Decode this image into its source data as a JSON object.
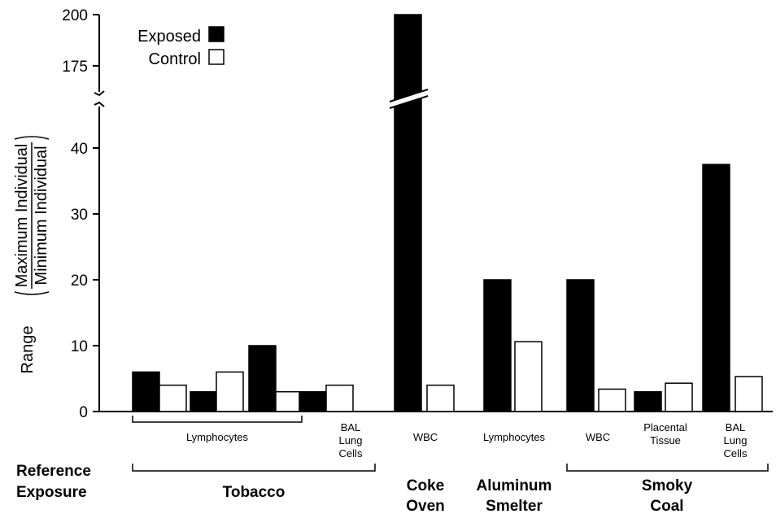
{
  "chart_data": {
    "type": "bar",
    "title": "",
    "ylabel_prefix": "Range",
    "ylabel_numerator": "Maximum Individual",
    "ylabel_denominator": "Minimum Individual",
    "y_axis_lower": {
      "ylim": [
        0,
        45
      ],
      "ticks": [
        0,
        10,
        20,
        30,
        40
      ],
      "tick_labels": [
        "0",
        "10",
        "20",
        "30",
        "40"
      ]
    },
    "y_axis_upper": {
      "ylim": [
        160,
        200
      ],
      "ticks": [
        175,
        200
      ],
      "tick_labels": [
        "175",
        "200"
      ]
    },
    "axis_break": true,
    "legend": {
      "placement": "top-left",
      "entries": [
        {
          "label": "Exposed",
          "color": "#000000"
        },
        {
          "label": "Control",
          "color": "#ffffff"
        }
      ]
    },
    "bars": [
      {
        "exposure": "Tobacco",
        "tissue": "Lymphocytes",
        "series": "Exposed",
        "value": 6
      },
      {
        "exposure": "Tobacco",
        "tissue": "Lymphocytes",
        "series": "Control",
        "value": 4
      },
      {
        "exposure": "Tobacco",
        "tissue": "Lymphocytes",
        "series": "Exposed",
        "value": 3
      },
      {
        "exposure": "Tobacco",
        "tissue": "Lymphocytes",
        "series": "Control",
        "value": 6
      },
      {
        "exposure": "Tobacco",
        "tissue": "Lymphocytes",
        "series": "Exposed",
        "value": 10
      },
      {
        "exposure": "Tobacco",
        "tissue": "Lymphocytes",
        "series": "Control",
        "value": 3
      },
      {
        "exposure": "Tobacco",
        "tissue": "BAL Lung Cells",
        "series": "Exposed",
        "value": 3
      },
      {
        "exposure": "Tobacco",
        "tissue": "BAL Lung Cells",
        "series": "Control",
        "value": 4
      },
      {
        "exposure": "Coke Oven",
        "tissue": "WBC",
        "series": "Exposed",
        "value": 200
      },
      {
        "exposure": "Coke Oven",
        "tissue": "WBC",
        "series": "Control",
        "value": 4
      },
      {
        "exposure": "Aluminum Smelter",
        "tissue": "Lymphocytes",
        "series": "Exposed",
        "value": 20
      },
      {
        "exposure": "Aluminum Smelter",
        "tissue": "Lymphocytes",
        "series": "Control",
        "value": 10.6
      },
      {
        "exposure": "Smoky Coal",
        "tissue": "WBC",
        "series": "Exposed",
        "value": 20
      },
      {
        "exposure": "Smoky Coal",
        "tissue": "WBC",
        "series": "Control",
        "value": 3.4
      },
      {
        "exposure": "Smoky Coal",
        "tissue": "Placental Tissue",
        "series": "Exposed",
        "value": 3
      },
      {
        "exposure": "Smoky Coal",
        "tissue": "Placental Tissue",
        "series": "Control",
        "value": 4.3
      },
      {
        "exposure": "Smoky Coal",
        "tissue": "BAL Lung Cells",
        "series": "Exposed",
        "value": 37.5
      },
      {
        "exposure": "Smoky Coal",
        "tissue": "BAL Lung Cells",
        "series": "Control",
        "value": 5.3
      }
    ],
    "tissue_labels": [
      {
        "lines": [
          "Lymphocytes"
        ]
      },
      {
        "lines": [
          "BAL",
          "Lung",
          "Cells"
        ]
      },
      {
        "lines": [
          "WBC"
        ]
      },
      {
        "lines": [
          "Lymphocytes"
        ]
      },
      {
        "lines": [
          "WBC"
        ]
      },
      {
        "lines": [
          "Placental",
          "Tissue"
        ]
      },
      {
        "lines": [
          "BAL",
          "Lung",
          "Cells"
        ]
      }
    ],
    "reference_exposure_label": [
      "Reference",
      "Exposure"
    ],
    "exposure_labels": [
      {
        "lines": [
          "Tobacco"
        ]
      },
      {
        "lines": [
          "Coke",
          "Oven"
        ]
      },
      {
        "lines": [
          "Aluminum",
          "Smelter"
        ]
      },
      {
        "lines": [
          "Smoky",
          "Coal"
        ]
      }
    ]
  }
}
